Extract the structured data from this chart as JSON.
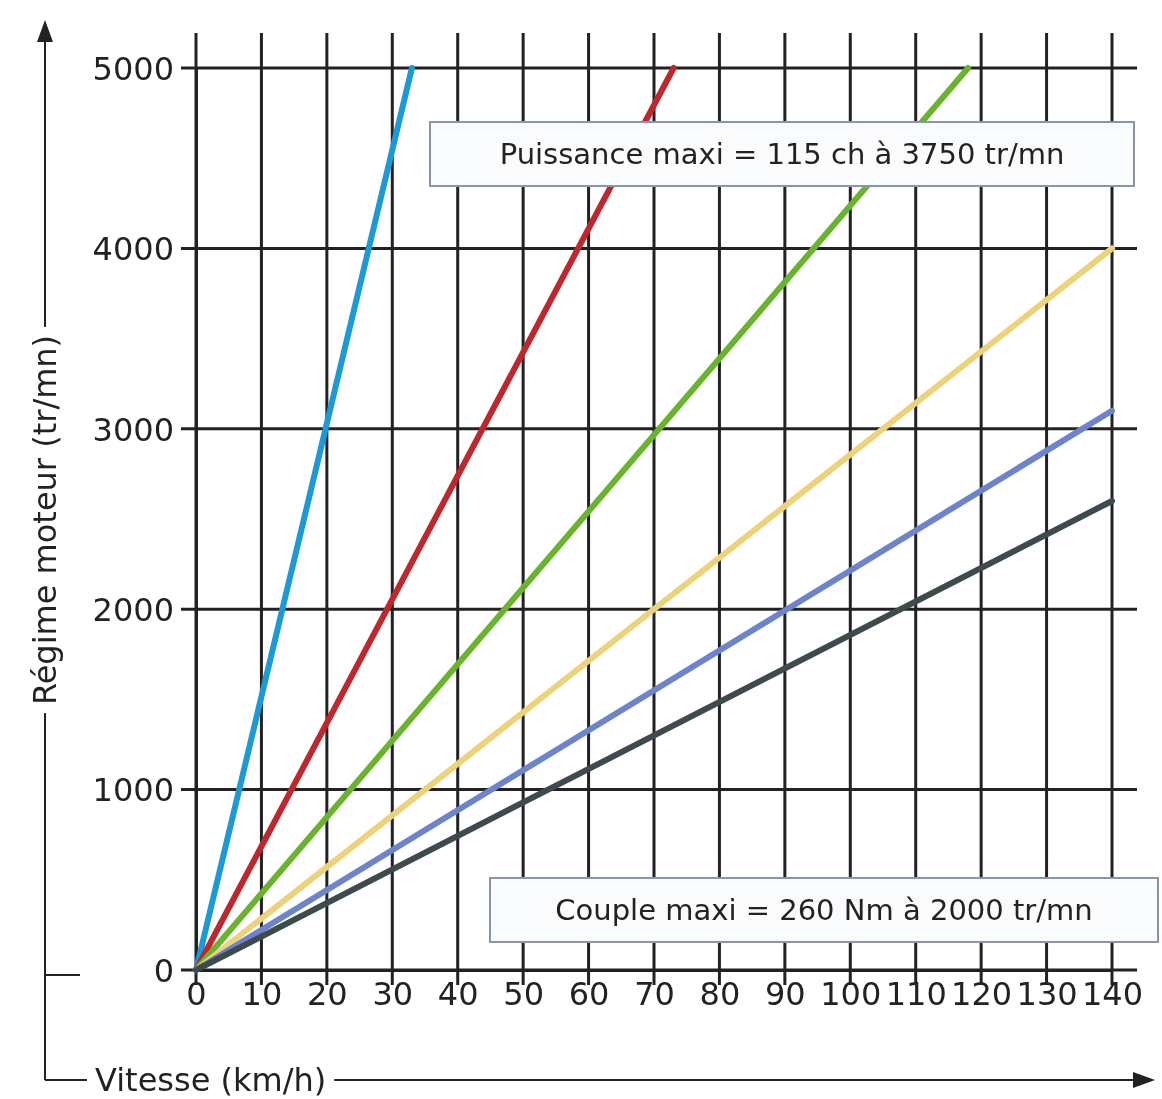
{
  "chart_data": {
    "type": "line",
    "xlabel": "Vitesse (km/h)",
    "ylabel": "Régime moteur (tr/mn)",
    "xlim": [
      0,
      140
    ],
    "ylim": [
      0,
      5000
    ],
    "xticks": [
      0,
      10,
      20,
      30,
      40,
      50,
      60,
      70,
      80,
      90,
      100,
      110,
      120,
      130,
      140
    ],
    "yticks": [
      0,
      1000,
      2000,
      3000,
      4000,
      5000
    ],
    "grid": true,
    "marker": "none",
    "line_style": "solid",
    "series": [
      {
        "color": "#1a9ad6",
        "x": [
          0,
          33
        ],
        "values": [
          0,
          5000
        ]
      },
      {
        "color": "#c0272d",
        "x": [
          0,
          73
        ],
        "values": [
          0,
          5000
        ]
      },
      {
        "color": "#6ab42d",
        "x": [
          0,
          118
        ],
        "values": [
          0,
          5000
        ]
      },
      {
        "color": "#edd27a",
        "x": [
          0,
          140
        ],
        "values": [
          0,
          4000
        ]
      },
      {
        "color": "#6b84cc",
        "x": [
          0,
          140
        ],
        "values": [
          0,
          3100
        ]
      },
      {
        "color": "#3d4a4e",
        "x": [
          0,
          140
        ],
        "values": [
          0,
          2600
        ]
      }
    ],
    "annotations": [
      "Puissance maxi = 115 ch à 3750 tr/mn",
      "Couple maxi = 260 Nm à 2000 tr/mn"
    ]
  }
}
